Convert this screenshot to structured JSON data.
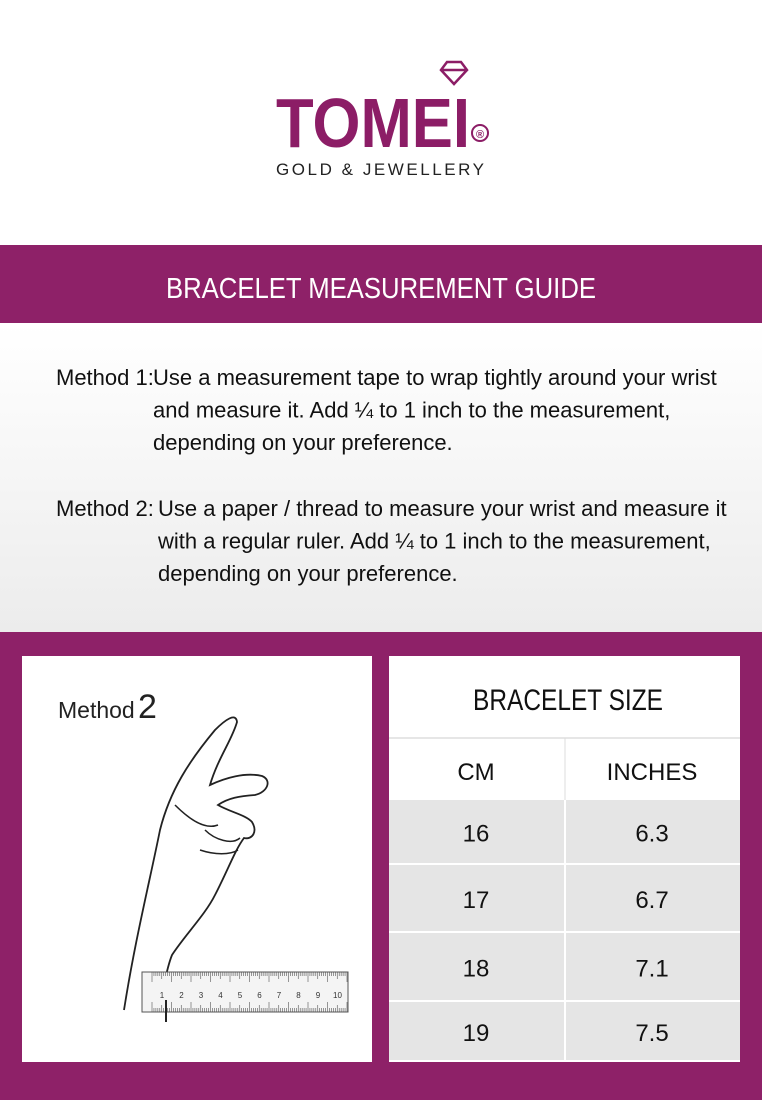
{
  "header": {
    "brand": "TOMEI",
    "registered": "®",
    "tagline": "GOLD & JEWELLERY"
  },
  "banner": {
    "title": "BRACELET MEASUREMENT GUIDE"
  },
  "methods": [
    {
      "label": "Method 1:",
      "lines": [
        "Use a measurement tape to wrap tightly around your wrist",
        "and measure it. Add ¼ to 1 inch to the measurement,",
        "depending on your preference."
      ]
    },
    {
      "label": "Method 2:",
      "lines": [
        "Use a paper / thread to measure your wrist and measure it",
        "with a regular ruler. Add ¼ to 1 inch to the measurement,",
        "depending on your preference."
      ]
    }
  ],
  "illustration": {
    "caption": "Method",
    "number": "2",
    "ruler_labels": [
      "1",
      "2",
      "3",
      "4",
      "5",
      "6",
      "7",
      "8",
      "9",
      "10"
    ]
  },
  "table": {
    "title": "BRACELET SIZE",
    "header": [
      "CM",
      "INCHES"
    ],
    "rows": [
      [
        "16",
        "6.3"
      ],
      [
        "17",
        "6.7"
      ],
      [
        "18",
        "7.1"
      ],
      [
        "19",
        "7.5"
      ]
    ]
  }
}
